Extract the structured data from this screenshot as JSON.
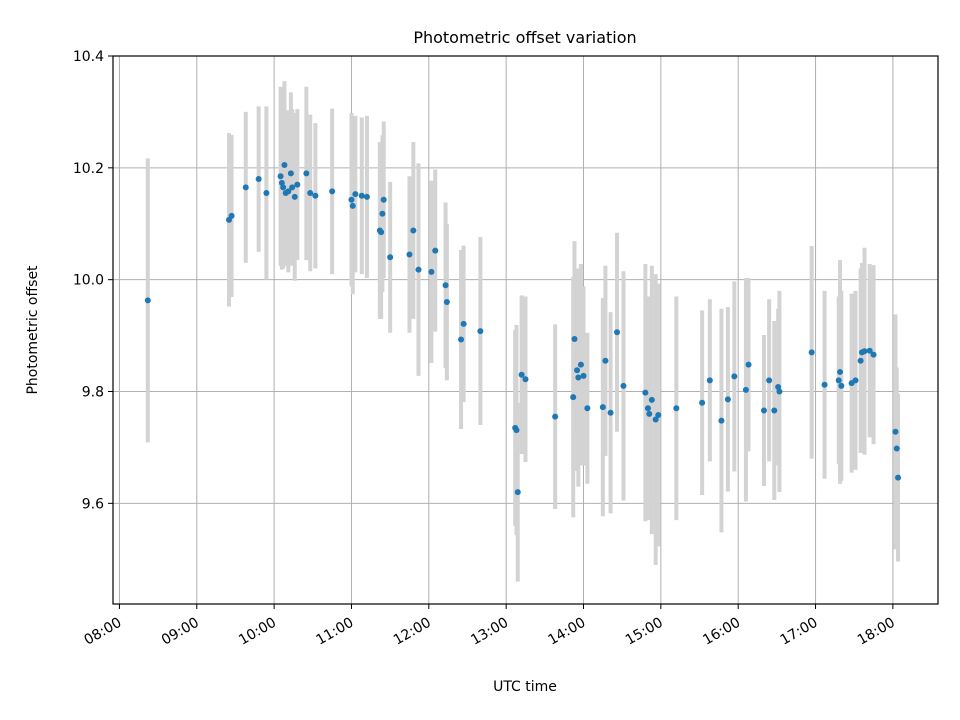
{
  "chart_data": {
    "type": "scatter",
    "title": "Photometric offset variation",
    "xlabel": "UTC time",
    "ylabel": "Photometric offset",
    "x_unit": "UTC time of day (HH:MM)",
    "xlim": [
      "07:55",
      "18:35"
    ],
    "ylim": [
      9.42,
      10.4
    ],
    "xticks": [
      "08:00",
      "09:00",
      "10:00",
      "11:00",
      "12:00",
      "13:00",
      "14:00",
      "15:00",
      "16:00",
      "17:00",
      "18:00"
    ],
    "yticks": [
      9.6,
      9.8,
      10.0,
      10.2,
      10.4
    ],
    "grid": true,
    "colors": {
      "points": "#1f77b4",
      "errorbars": "#d3d3d3",
      "grid": "#b0b0b0"
    },
    "points": [
      {
        "x": "08:22",
        "y": 9.963,
        "err": 0.254
      },
      {
        "x": "09:25",
        "y": 10.107,
        "err": 0.155
      },
      {
        "x": "09:27",
        "y": 10.114,
        "err": 0.145
      },
      {
        "x": "09:38",
        "y": 10.165,
        "err": 0.135
      },
      {
        "x": "09:48",
        "y": 10.18,
        "err": 0.13
      },
      {
        "x": "09:54",
        "y": 10.155,
        "err": 0.155
      },
      {
        "x": "10:05",
        "y": 10.185,
        "err": 0.16
      },
      {
        "x": "10:06",
        "y": 10.173,
        "err": 0.155
      },
      {
        "x": "10:07",
        "y": 10.165,
        "err": 0.145
      },
      {
        "x": "10:08",
        "y": 10.205,
        "err": 0.15
      },
      {
        "x": "10:09",
        "y": 10.155,
        "err": 0.13
      },
      {
        "x": "10:11",
        "y": 10.158,
        "err": 0.145
      },
      {
        "x": "10:13",
        "y": 10.19,
        "err": 0.145
      },
      {
        "x": "10:14",
        "y": 10.165,
        "err": 0.14
      },
      {
        "x": "10:16",
        "y": 10.148,
        "err": 0.15
      },
      {
        "x": "10:18",
        "y": 10.17,
        "err": 0.135
      },
      {
        "x": "10:25",
        "y": 10.19,
        "err": 0.155
      },
      {
        "x": "10:28",
        "y": 10.155,
        "err": 0.14
      },
      {
        "x": "10:32",
        "y": 10.15,
        "err": 0.13
      },
      {
        "x": "10:45",
        "y": 10.158,
        "err": 0.148
      },
      {
        "x": "11:00",
        "y": 10.143,
        "err": 0.155
      },
      {
        "x": "11:01",
        "y": 10.132,
        "err": 0.158
      },
      {
        "x": "11:03",
        "y": 10.153,
        "err": 0.14
      },
      {
        "x": "11:08",
        "y": 10.15,
        "err": 0.14
      },
      {
        "x": "11:12",
        "y": 10.148,
        "err": 0.145
      },
      {
        "x": "11:22",
        "y": 10.088,
        "err": 0.158
      },
      {
        "x": "11:23",
        "y": 10.085,
        "err": 0.155
      },
      {
        "x": "11:24",
        "y": 10.118,
        "err": 0.14
      },
      {
        "x": "11:25",
        "y": 10.143,
        "err": 0.14
      },
      {
        "x": "11:30",
        "y": 10.04,
        "err": 0.135
      },
      {
        "x": "11:45",
        "y": 10.045,
        "err": 0.14
      },
      {
        "x": "11:48",
        "y": 10.088,
        "err": 0.158
      },
      {
        "x": "11:52",
        "y": 10.018,
        "err": 0.19
      },
      {
        "x": "12:02",
        "y": 10.014,
        "err": 0.163
      },
      {
        "x": "12:05",
        "y": 10.052,
        "err": 0.145
      },
      {
        "x": "12:13",
        "y": 9.99,
        "err": 0.148
      },
      {
        "x": "12:14",
        "y": 9.96,
        "err": 0.14
      },
      {
        "x": "12:25",
        "y": 9.893,
        "err": 0.16
      },
      {
        "x": "12:27",
        "y": 9.921,
        "err": 0.14
      },
      {
        "x": "12:40",
        "y": 9.908,
        "err": 0.168
      },
      {
        "x": "13:07",
        "y": 9.735,
        "err": 0.175
      },
      {
        "x": "13:08",
        "y": 9.731,
        "err": 0.188
      },
      {
        "x": "13:09",
        "y": 9.62,
        "err": 0.16
      },
      {
        "x": "13:12",
        "y": 9.83,
        "err": 0.142
      },
      {
        "x": "13:15",
        "y": 9.822,
        "err": 0.148
      },
      {
        "x": "13:38",
        "y": 9.755,
        "err": 0.165
      },
      {
        "x": "13:52",
        "y": 9.79,
        "err": 0.215
      },
      {
        "x": "13:53",
        "y": 9.894,
        "err": 0.175
      },
      {
        "x": "13:55",
        "y": 9.838,
        "err": 0.18
      },
      {
        "x": "13:56",
        "y": 9.825,
        "err": 0.195
      },
      {
        "x": "13:58",
        "y": 9.848,
        "err": 0.18
      },
      {
        "x": "14:00",
        "y": 9.828,
        "err": 0.16
      },
      {
        "x": "14:03",
        "y": 9.77,
        "err": 0.135
      },
      {
        "x": "14:15",
        "y": 9.772,
        "err": 0.195
      },
      {
        "x": "14:17",
        "y": 9.855,
        "err": 0.17
      },
      {
        "x": "14:21",
        "y": 9.762,
        "err": 0.18
      },
      {
        "x": "14:26",
        "y": 9.906,
        "err": 0.178
      },
      {
        "x": "14:31",
        "y": 9.81,
        "err": 0.205
      },
      {
        "x": "14:48",
        "y": 9.798,
        "err": 0.23
      },
      {
        "x": "14:50",
        "y": 9.77,
        "err": 0.2
      },
      {
        "x": "14:51",
        "y": 9.76,
        "err": 0.18
      },
      {
        "x": "14:53",
        "y": 9.785,
        "err": 0.24
      },
      {
        "x": "14:56",
        "y": 9.75,
        "err": 0.26
      },
      {
        "x": "14:58",
        "y": 9.758,
        "err": 0.235
      },
      {
        "x": "15:12",
        "y": 9.77,
        "err": 0.2
      },
      {
        "x": "15:32",
        "y": 9.78,
        "err": 0.165
      },
      {
        "x": "15:38",
        "y": 9.82,
        "err": 0.145
      },
      {
        "x": "15:47",
        "y": 9.748,
        "err": 0.2
      },
      {
        "x": "15:52",
        "y": 9.786,
        "err": 0.165
      },
      {
        "x": "15:57",
        "y": 9.827,
        "err": 0.17
      },
      {
        "x": "16:06",
        "y": 9.803,
        "err": 0.2
      },
      {
        "x": "16:08",
        "y": 9.848,
        "err": 0.155
      },
      {
        "x": "16:20",
        "y": 9.766,
        "err": 0.135
      },
      {
        "x": "16:24",
        "y": 9.82,
        "err": 0.145
      },
      {
        "x": "16:28",
        "y": 9.766,
        "err": 0.16
      },
      {
        "x": "16:31",
        "y": 9.808,
        "err": 0.14
      },
      {
        "x": "16:32",
        "y": 9.8,
        "err": 0.18
      },
      {
        "x": "16:57",
        "y": 9.87,
        "err": 0.19
      },
      {
        "x": "17:07",
        "y": 9.812,
        "err": 0.168
      },
      {
        "x": "17:18",
        "y": 9.82,
        "err": 0.15
      },
      {
        "x": "17:19",
        "y": 9.835,
        "err": 0.2
      },
      {
        "x": "17:20",
        "y": 9.81,
        "err": 0.17
      },
      {
        "x": "17:28",
        "y": 9.815,
        "err": 0.16
      },
      {
        "x": "17:31",
        "y": 9.82,
        "err": 0.16
      },
      {
        "x": "17:35",
        "y": 9.855,
        "err": 0.165
      },
      {
        "x": "17:36",
        "y": 9.87,
        "err": 0.16
      },
      {
        "x": "17:38",
        "y": 9.872,
        "err": 0.185
      },
      {
        "x": "17:42",
        "y": 9.873,
        "err": 0.155
      },
      {
        "x": "17:45",
        "y": 9.866,
        "err": 0.16
      },
      {
        "x": "18:02",
        "y": 9.728,
        "err": 0.21
      },
      {
        "x": "18:03",
        "y": 9.698,
        "err": 0.145
      },
      {
        "x": "18:04",
        "y": 9.646,
        "err": 0.15
      }
    ]
  }
}
